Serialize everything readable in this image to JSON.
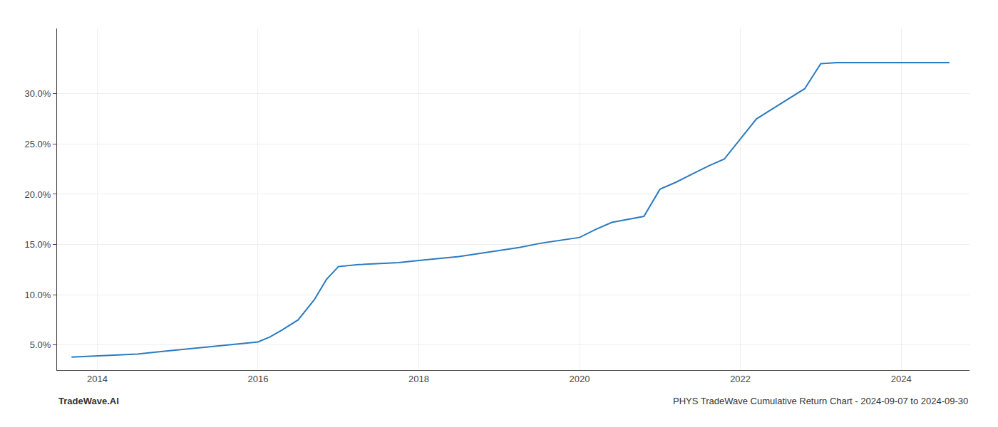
{
  "chart_data": {
    "type": "line",
    "x": [
      2013.68,
      2014.0,
      2014.25,
      2014.5,
      2014.75,
      2015.0,
      2015.25,
      2015.5,
      2015.75,
      2016.0,
      2016.15,
      2016.3,
      2016.5,
      2016.7,
      2016.85,
      2017.0,
      2017.25,
      2017.5,
      2017.75,
      2018.0,
      2018.25,
      2018.5,
      2018.75,
      2019.0,
      2019.25,
      2019.5,
      2019.75,
      2020.0,
      2020.2,
      2020.4,
      2020.6,
      2020.8,
      2021.0,
      2021.2,
      2021.4,
      2021.6,
      2021.8,
      2022.0,
      2022.2,
      2022.4,
      2022.6,
      2022.8,
      2023.0,
      2023.2,
      2023.4,
      2023.6,
      2023.8,
      2024.0,
      2024.3,
      2024.6
    ],
    "values": [
      3.8,
      3.9,
      4.0,
      4.1,
      4.3,
      4.5,
      4.7,
      4.9,
      5.1,
      5.3,
      5.8,
      6.5,
      7.5,
      9.5,
      11.5,
      12.8,
      13.0,
      13.1,
      13.2,
      13.4,
      13.6,
      13.8,
      14.1,
      14.4,
      14.7,
      15.1,
      15.4,
      15.7,
      16.5,
      17.2,
      17.5,
      17.8,
      20.5,
      21.2,
      22.0,
      22.8,
      23.5,
      25.5,
      27.5,
      28.5,
      29.5,
      30.5,
      33.0,
      33.1,
      33.1,
      33.1,
      33.1,
      33.1,
      33.1,
      33.1
    ],
    "color": "#2b7bbf",
    "xlim": [
      2013.5,
      2024.85
    ],
    "ylim": [
      2.5,
      36.5
    ],
    "xticks": [
      2014,
      2016,
      2018,
      2020,
      2022,
      2024
    ],
    "yticks": [
      {
        "value": 5.0,
        "label": "5.0%"
      },
      {
        "value": 10.0,
        "label": "10.0%"
      },
      {
        "value": 15.0,
        "label": "15.0%"
      },
      {
        "value": 20.0,
        "label": "20.0%"
      },
      {
        "value": 25.0,
        "label": "25.0%"
      },
      {
        "value": 30.0,
        "label": "30.0%"
      }
    ],
    "grid": true,
    "annotations": [
      "TradeWave.AI",
      "PHYS TradeWave Cumulative Return Chart - 2024-09-07 to 2024-09-30"
    ]
  }
}
